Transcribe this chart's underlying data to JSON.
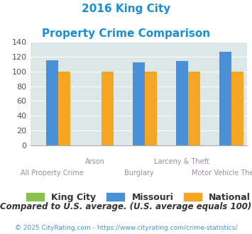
{
  "title_line1": "2016 King City",
  "title_line2": "Property Crime Comparison",
  "categories": [
    "All Property Crime",
    "Arson",
    "Burglary",
    "Larceny & Theft",
    "Motor Vehicle Theft"
  ],
  "king_city": [
    0,
    0,
    0,
    0,
    0
  ],
  "missouri": [
    115,
    0,
    112,
    114,
    127
  ],
  "national": [
    100,
    100,
    100,
    100,
    100
  ],
  "king_city_color": "#8bc34a",
  "missouri_color": "#4a90d9",
  "national_color": "#f5a623",
  "ylim": [
    0,
    140
  ],
  "yticks": [
    0,
    20,
    40,
    60,
    80,
    100,
    120,
    140
  ],
  "title_color": "#1a8fd1",
  "axis_label_color": "#9b8ea0",
  "legend_labels": [
    "King City",
    "Missouri",
    "National"
  ],
  "footer_text": "Compared to U.S. average. (U.S. average equals 100)",
  "copyright_text": "© 2025 CityRating.com - https://www.cityrating.com/crime-statistics/",
  "footer_color": "#333333",
  "copyright_color": "#4a90d9",
  "bg_color": "#dce8e8",
  "bar_width": 0.28
}
